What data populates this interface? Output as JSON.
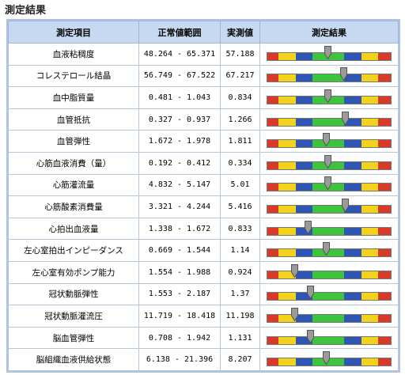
{
  "title": "測定結果",
  "table": {
    "headers": [
      "測定項目",
      "正常値範囲",
      "実測値",
      "測定結果"
    ],
    "rows": [
      [
        "血液粘稠度",
        "48.264 - 65.371",
        "57.188"
      ],
      [
        "コレステロール結晶",
        "56.749 - 67.522",
        "67.217"
      ],
      [
        "血中脂質量",
        "0.481 - 1.043",
        "0.834"
      ],
      [
        "血管抵抗",
        "0.327 - 0.937",
        "1.266"
      ],
      [
        "血管弾性",
        "1.672 - 1.978",
        "1.811"
      ],
      [
        "心筋血液消費（量）",
        "0.192 - 0.412",
        "0.334"
      ],
      [
        "心筋灌流量",
        "4.832 - 5.147",
        "5.01"
      ],
      [
        "心筋酸素消費量",
        "3.321 - 4.244",
        "5.416"
      ],
      [
        "心拍出血液量",
        "1.338 - 1.672",
        "0.833"
      ],
      [
        "左心室拍出インピーダンス",
        "0.669 - 1.544",
        "1.14"
      ],
      [
        "左心室有効ポンプ能力",
        "1.554 - 1.988",
        "0.924"
      ],
      [
        "冠状動脈弾性",
        "1.553 - 2.187",
        "1.37"
      ],
      [
        "冠状動脈灌流圧",
        "11.719 - 18.418",
        "11.198"
      ],
      [
        "脳血管弾性",
        "0.708 - 1.942",
        "1.131"
      ],
      [
        "脳組織血液供給状態",
        "6.138 - 21.396",
        "8.207"
      ]
    ]
  }
}
